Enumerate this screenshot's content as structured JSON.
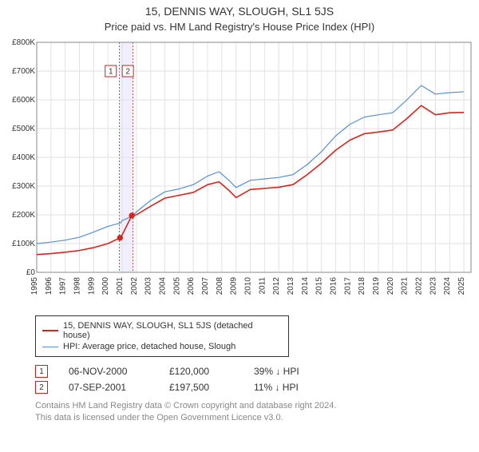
{
  "title_line1": "15, DENNIS WAY, SLOUGH, SL1 5JS",
  "title_line2": "Price paid vs. HM Land Registry's House Price Index (HPI)",
  "chart": {
    "type": "line",
    "background_color": "#ffffff",
    "grid_color": "#e2e2e2",
    "axis_color": "#888888",
    "x_years": [
      1995,
      1996,
      1997,
      1998,
      1999,
      2000,
      2001,
      2002,
      2003,
      2004,
      2005,
      2006,
      2007,
      2008,
      2009,
      2010,
      2011,
      2012,
      2013,
      2014,
      2015,
      2016,
      2017,
      2018,
      2019,
      2020,
      2021,
      2022,
      2023,
      2024,
      2025
    ],
    "xlim": [
      1995,
      2025.5
    ],
    "ylim": [
      0,
      800000
    ],
    "ytick_step": 100000,
    "ytick_labels": [
      "£0",
      "£100K",
      "£200K",
      "£300K",
      "£400K",
      "£500K",
      "£600K",
      "£700K",
      "£800K"
    ],
    "xtick_rotation": -90,
    "label_fontsize": 10,
    "series": [
      {
        "name": "hpi",
        "label": "HPI: Average price, detached house, Slough",
        "color": "#5a8fd6",
        "line_width": 1.2,
        "points": [
          [
            1995,
            100
          ],
          [
            1996,
            105
          ],
          [
            1997,
            112
          ],
          [
            1998,
            122
          ],
          [
            1999,
            140
          ],
          [
            2000,
            160
          ],
          [
            2000.9,
            172
          ],
          [
            2001,
            180
          ],
          [
            2001.7,
            195
          ],
          [
            2002,
            210
          ],
          [
            2003,
            250
          ],
          [
            2004,
            280
          ],
          [
            2005,
            290
          ],
          [
            2006,
            305
          ],
          [
            2007,
            335
          ],
          [
            2007.8,
            350
          ],
          [
            2008.5,
            320
          ],
          [
            2009,
            295
          ],
          [
            2010,
            320
          ],
          [
            2011,
            325
          ],
          [
            2012,
            330
          ],
          [
            2013,
            340
          ],
          [
            2014,
            375
          ],
          [
            2015,
            420
          ],
          [
            2016,
            475
          ],
          [
            2017,
            515
          ],
          [
            2018,
            540
          ],
          [
            2019,
            548
          ],
          [
            2020,
            555
          ],
          [
            2021,
            600
          ],
          [
            2022,
            650
          ],
          [
            2023,
            620
          ],
          [
            2024,
            625
          ],
          [
            2025,
            628
          ]
        ]
      },
      {
        "name": "subject",
        "label": "15, DENNIS WAY, SLOUGH, SL1 5JS (detached house)",
        "color": "#d9241c",
        "line_width": 1.6,
        "points": [
          [
            1995,
            62
          ],
          [
            1996,
            65
          ],
          [
            1997,
            70
          ],
          [
            1998,
            76
          ],
          [
            1999,
            86
          ],
          [
            2000,
            100
          ],
          [
            2000.85,
            120
          ],
          [
            2001,
            130
          ],
          [
            2001.68,
            197.5
          ],
          [
            2002,
            200
          ],
          [
            2003,
            230
          ],
          [
            2004,
            258
          ],
          [
            2005,
            268
          ],
          [
            2006,
            278
          ],
          [
            2007,
            305
          ],
          [
            2007.8,
            315
          ],
          [
            2008.5,
            285
          ],
          [
            2009,
            260
          ],
          [
            2010,
            288
          ],
          [
            2011,
            292
          ],
          [
            2012,
            296
          ],
          [
            2013,
            305
          ],
          [
            2014,
            340
          ],
          [
            2015,
            380
          ],
          [
            2016,
            425
          ],
          [
            2017,
            460
          ],
          [
            2018,
            482
          ],
          [
            2019,
            488
          ],
          [
            2020,
            495
          ],
          [
            2021,
            535
          ],
          [
            2022,
            580
          ],
          [
            2023,
            548
          ],
          [
            2024,
            555
          ],
          [
            2025,
            556
          ]
        ]
      }
    ],
    "highlight_band": {
      "x_start": 2000.8,
      "x_end": 2001.75,
      "fill": "#efefff",
      "border_dash": "2,2",
      "border_color": "#c62020"
    },
    "sale_markers": [
      {
        "n": "1",
        "x": 2000.85,
        "y": 120,
        "box_x": 2000.2,
        "box_y": 700,
        "box_border": "#c62020",
        "fill": "#ffffff"
      },
      {
        "n": "2",
        "x": 2001.68,
        "y": 197.5,
        "box_x": 2001.4,
        "box_y": 700,
        "box_border": "#c62020",
        "fill": "#ffffff"
      }
    ],
    "marker_radius": 3.2
  },
  "legend": {
    "rows": [
      {
        "color": "#d9241c",
        "width": 2,
        "label": "15, DENNIS WAY, SLOUGH, SL1 5JS (detached house)"
      },
      {
        "color": "#5a8fd6",
        "width": 1.5,
        "label": "HPI: Average price, detached house, Slough"
      }
    ]
  },
  "sales": [
    {
      "n": "1",
      "date": "06-NOV-2000",
      "price": "£120,000",
      "delta": "39%",
      "dir": "↓",
      "vs": "HPI",
      "marker_border": "#c62020"
    },
    {
      "n": "2",
      "date": "07-SEP-2001",
      "price": "£197,500",
      "delta": "11%",
      "dir": "↓",
      "vs": "HPI",
      "marker_border": "#c62020"
    }
  ],
  "credits": {
    "line1": "Contains HM Land Registry data © Crown copyright and database right 2024.",
    "line2": "This data is licensed under the Open Government Licence v3.0."
  }
}
